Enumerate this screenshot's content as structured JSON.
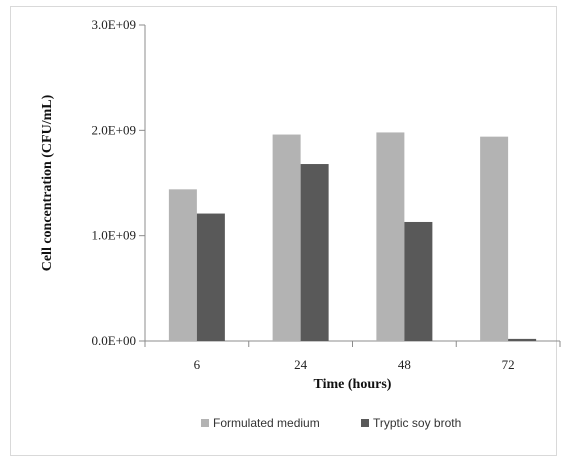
{
  "chart_data": {
    "type": "bar",
    "categories": [
      "6",
      "24",
      "48",
      "72"
    ],
    "series": [
      {
        "name": "Formulated medium",
        "values": [
          1440000000.0,
          1960000000.0,
          1980000000.0,
          1940000000.0
        ],
        "color": "#b3b3b3"
      },
      {
        "name": "Tryptic soy broth",
        "values": [
          1210000000.0,
          1680000000.0,
          1130000000.0,
          20000000.0
        ],
        "color": "#595959"
      }
    ],
    "title": "",
    "xlabel": "Time (hours)",
    "ylabel": "Cell concentration (CFU/mL)",
    "ylim": [
      0,
      3000000000
    ],
    "yticks": [
      {
        "value": 0,
        "label": "0.0E+00"
      },
      {
        "value": 1000000000,
        "label": "1.0E+09"
      },
      {
        "value": 2000000000,
        "label": "2.0E+09"
      },
      {
        "value": 3000000000,
        "label": "3.0E+09"
      }
    ],
    "grid": false,
    "legend_position": "bottom"
  }
}
